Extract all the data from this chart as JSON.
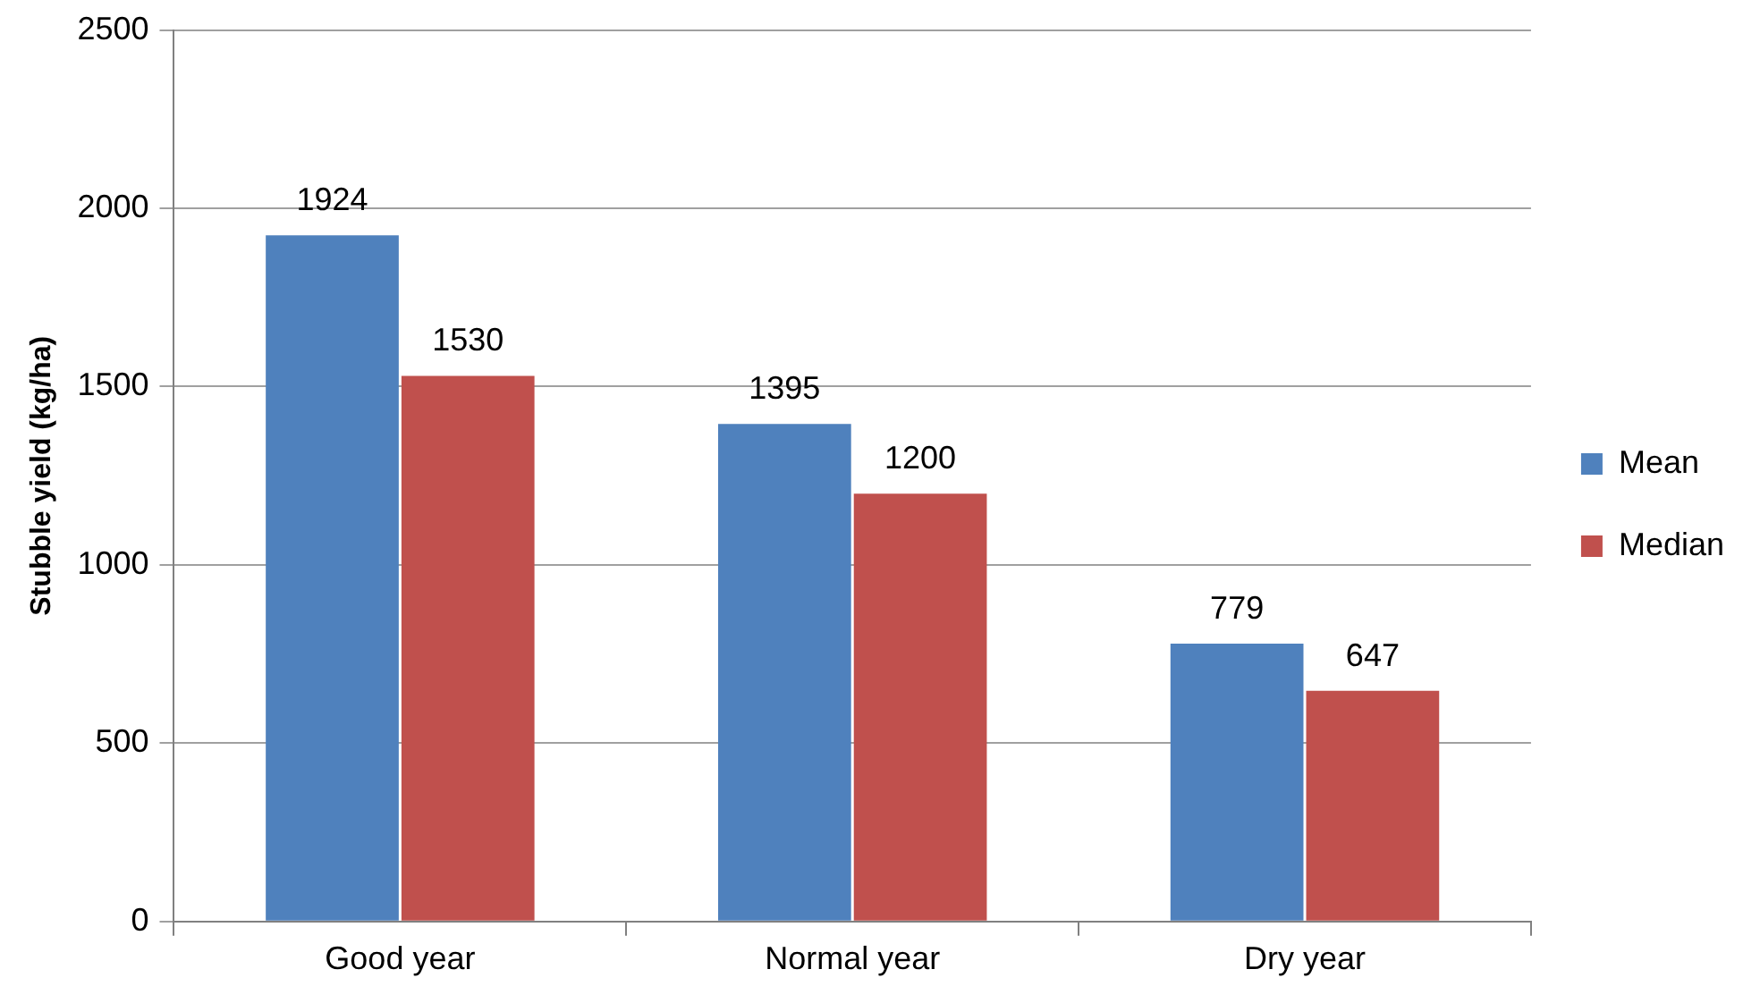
{
  "chart_data": {
    "type": "bar",
    "ylabel": "Stubble yield (kg/ha)",
    "categories": [
      "Good year",
      "Normal year",
      "Dry year"
    ],
    "series": [
      {
        "name": "Mean",
        "color": "#4f81bd",
        "values": [
          1924,
          1395,
          779
        ]
      },
      {
        "name": "Median",
        "color": "#c0504d",
        "values": [
          1530,
          1200,
          647
        ]
      }
    ],
    "ylim": [
      0,
      2500
    ],
    "yticks": [
      0,
      500,
      1000,
      1500,
      2000,
      2500
    ],
    "grid": "y",
    "legend": "right",
    "data_labels": true
  }
}
